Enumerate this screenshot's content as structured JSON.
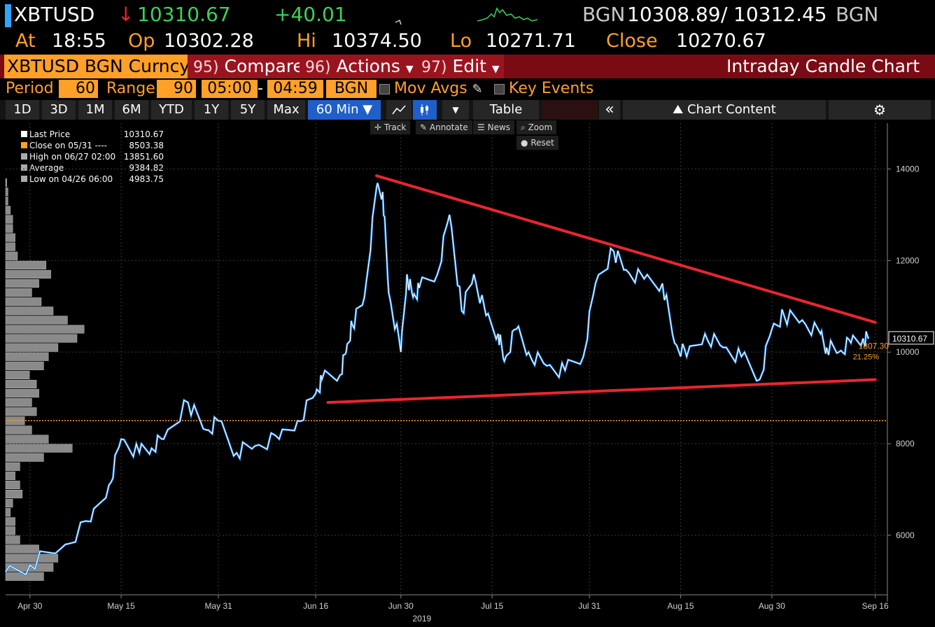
{
  "header": {
    "ticker": "XBTUSD",
    "last_price": "10310.67",
    "direction_icon": "down-arrow",
    "change": "+40.01",
    "bid_source": "BGN",
    "bid": "10308.89",
    "separator": "/",
    "ask": "10312.45",
    "ask_source": "BGN",
    "at_label": "At",
    "time": "18:55",
    "open_label": "Op",
    "open": "10302.28",
    "high_label": "Hi",
    "high": "10374.50",
    "low_label": "Lo",
    "low": "10271.71",
    "close_label": "Close",
    "close": "10270.67"
  },
  "menubar": {
    "security": "XBTUSD BGN Curncy",
    "compare_num": "95)",
    "compare": "Compare",
    "actions_num": "96)",
    "actions": "Actions",
    "edit_num": "97)",
    "edit": "Edit",
    "title": "Intraday Candle Chart"
  },
  "controls": {
    "period_label": "Period",
    "period": "60",
    "range_label": "Range",
    "range": "90",
    "start_time": "05:00",
    "dash": "-",
    "end_time": "04:59",
    "source": "BGN",
    "mov_avgs": "Mov Avgs",
    "key_events": "Key Events"
  },
  "tabs": {
    "items": [
      "1D",
      "3D",
      "1M",
      "6M",
      "YTD",
      "1Y",
      "5Y",
      "Max"
    ],
    "interval": "60 Min",
    "table": "Table",
    "chart_content": "Chart Content"
  },
  "tools": {
    "track": "Track",
    "annotate": "Annotate",
    "news": "News",
    "zoom": "Zoom",
    "reset": "Reset"
  },
  "legend": [
    {
      "label": "Last Price",
      "value": "10310.67",
      "color": "#ffffff"
    },
    {
      "label": "Close on 05/31 ----",
      "value": "8503.38",
      "color": "#ffa028"
    },
    {
      "label": "High on 06/27 02:00",
      "value": "13851.60",
      "color": "#aaaaaa"
    },
    {
      "label": "Average",
      "value": "9384.82",
      "color": "#aaaaaa"
    },
    {
      "label": "Low on 04/26 06:00",
      "value": "4983.75",
      "color": "#aaaaaa"
    }
  ],
  "chart_data": {
    "type": "line",
    "series": [
      {
        "name": "Last Price",
        "x": [
          "04/26",
          "04/30",
          "05/05",
          "05/10",
          "05/13",
          "05/15",
          "05/18",
          "05/20",
          "05/22",
          "05/26",
          "05/29",
          "05/31",
          "06/03",
          "06/06",
          "06/10",
          "06/13",
          "06/16",
          "06/17",
          "06/20",
          "06/21",
          "06/22",
          "06/24",
          "06/26",
          "06/27",
          "06/28",
          "06/30",
          "07/01",
          "07/02",
          "07/03",
          "07/06",
          "07/08",
          "07/10",
          "07/12",
          "07/14",
          "07/16",
          "07/17",
          "07/19",
          "07/21",
          "07/24",
          "07/27",
          "07/30",
          "08/01",
          "08/04",
          "08/06",
          "08/09",
          "08/12",
          "08/14",
          "08/16",
          "08/19",
          "08/22",
          "08/25",
          "08/28",
          "08/30",
          "09/01",
          "09/04",
          "09/07",
          "09/08",
          "09/10",
          "09/12",
          "09/14",
          "09/15"
        ],
        "values": [
          5200,
          5350,
          5700,
          6300,
          7100,
          8100,
          7800,
          7900,
          8100,
          8900,
          8300,
          8500,
          7800,
          7950,
          8100,
          8500,
          9100,
          9400,
          9500,
          10000,
          10600,
          11200,
          13600,
          13500,
          11300,
          10000,
          11700,
          11200,
          11400,
          11700,
          13000,
          10900,
          11700,
          10800,
          10400,
          9800,
          10500,
          10000,
          9700,
          9600,
          9900,
          11500,
          12200,
          11800,
          11600,
          11500,
          10200,
          9900,
          10400,
          10100,
          9900,
          9400,
          10500,
          10800,
          10700,
          10400,
          10100,
          10000,
          10200,
          10300,
          10310.67
        ]
      }
    ],
    "reference_lines": [
      {
        "label": "Close on 05/31",
        "value": 8503.38,
        "color": "#ffa028"
      }
    ],
    "trendlines": [
      {
        "from": {
          "x": "06/26",
          "y": 13851.6
        },
        "to": {
          "x": "09/16",
          "y": 10650
        },
        "color": "#e8262e"
      },
      {
        "from": {
          "x": "06/18",
          "y": 8900
        },
        "to": {
          "x": "09/16",
          "y": 9400
        },
        "color": "#e8262e"
      }
    ],
    "volume_profile": [
      {
        "price": 5100,
        "volume": 0.16
      },
      {
        "price": 5300,
        "volume": 0.2
      },
      {
        "price": 5500,
        "volume": 0.22
      },
      {
        "price": 5700,
        "volume": 0.14
      },
      {
        "price": 5900,
        "volume": 0.06
      },
      {
        "price": 6100,
        "volume": 0.04
      },
      {
        "price": 6300,
        "volume": 0.04
      },
      {
        "price": 6500,
        "volume": 0.02
      },
      {
        "price": 6700,
        "volume": 0.03
      },
      {
        "price": 6900,
        "volume": 0.07
      },
      {
        "price": 7100,
        "volume": 0.06
      },
      {
        "price": 7300,
        "volume": 0.04
      },
      {
        "price": 7500,
        "volume": 0.06
      },
      {
        "price": 7700,
        "volume": 0.16
      },
      {
        "price": 7900,
        "volume": 0.28
      },
      {
        "price": 8100,
        "volume": 0.18
      },
      {
        "price": 8300,
        "volume": 0.11
      },
      {
        "price": 8500,
        "volume": 0.08
      },
      {
        "price": 8700,
        "volume": 0.13
      },
      {
        "price": 8900,
        "volume": 0.11
      },
      {
        "price": 9100,
        "volume": 0.14
      },
      {
        "price": 9300,
        "volume": 0.13
      },
      {
        "price": 9500,
        "volume": 0.1
      },
      {
        "price": 9700,
        "volume": 0.16
      },
      {
        "price": 9900,
        "volume": 0.18
      },
      {
        "price": 10100,
        "volume": 0.22
      },
      {
        "price": 10300,
        "volume": 0.3
      },
      {
        "price": 10500,
        "volume": 0.33
      },
      {
        "price": 10700,
        "volume": 0.26
      },
      {
        "price": 10900,
        "volume": 0.2
      },
      {
        "price": 11100,
        "volume": 0.15
      },
      {
        "price": 11300,
        "volume": 0.11
      },
      {
        "price": 11500,
        "volume": 0.14
      },
      {
        "price": 11700,
        "volume": 0.19
      },
      {
        "price": 11900,
        "volume": 0.17
      },
      {
        "price": 12100,
        "volume": 0.05
      },
      {
        "price": 12300,
        "volume": 0.04
      },
      {
        "price": 12500,
        "volume": 0.04
      },
      {
        "price": 12700,
        "volume": 0.03
      },
      {
        "price": 12900,
        "volume": 0.03
      },
      {
        "price": 13100,
        "volume": 0.02
      },
      {
        "price": 13300,
        "volume": 0.01
      },
      {
        "price": 13500,
        "volume": 0.01
      },
      {
        "price": 13700,
        "volume": 0.005
      }
    ],
    "x_start": "04/26",
    "x_end": "09/18",
    "x_ticks": [
      {
        "label": "Apr 30",
        "x": "04/30"
      },
      {
        "label": "May 15",
        "x": "05/15"
      },
      {
        "label": "May 31",
        "x": "05/31"
      },
      {
        "label": "Jun 16",
        "x": "06/16"
      },
      {
        "label": "Jun 30",
        "x": "06/30"
      },
      {
        "label": "Jul 15",
        "x": "07/15"
      },
      {
        "label": "Jul 31",
        "x": "07/31"
      },
      {
        "label": "Aug 15",
        "x": "08/15"
      },
      {
        "label": "Aug 30",
        "x": "08/30"
      },
      {
        "label": "Sep 16",
        "x": "09/16"
      }
    ],
    "x_year_label": "2019",
    "y_ticks": [
      6000,
      8000,
      10000,
      12000,
      14000
    ],
    "ylim": [
      4700,
      15000
    ],
    "last_price_label": "10310.67",
    "annotation_value": "1807.30",
    "annotation_pct": "21.25%",
    "grid": true
  }
}
